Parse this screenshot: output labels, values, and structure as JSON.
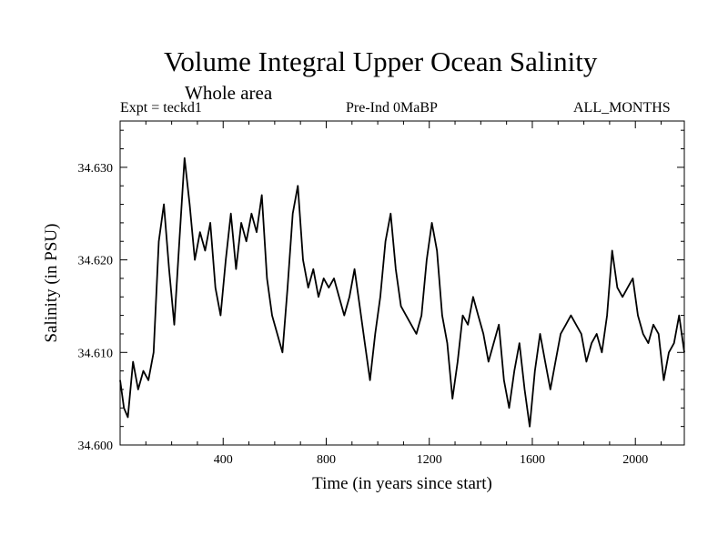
{
  "chart_data": {
    "type": "line",
    "title": "Volume Integral Upper Ocean Salinity",
    "subtitle": "Whole area",
    "annotations": {
      "left": "Expt = teckd1",
      "center": "Pre-Ind 0MaBP",
      "right": "ALL_MONTHS"
    },
    "xlabel": "Time (in years since start)",
    "ylabel": "Salinity (in PSU)",
    "xlim": [
      0,
      2190
    ],
    "ylim": [
      34.6,
      34.635
    ],
    "xticks": [
      400,
      800,
      1200,
      1600,
      2000
    ],
    "xtick_labels": [
      "400",
      "800",
      "1200",
      "1600",
      "2000"
    ],
    "yticks": [
      34.6,
      34.61,
      34.62,
      34.63
    ],
    "ytick_labels": [
      "34.600",
      "34.610",
      "34.620",
      "34.630"
    ],
    "grid": false,
    "series": [
      {
        "name": "Salinity",
        "color": "#000000",
        "x": [
          0,
          15,
          30,
          50,
          70,
          90,
          110,
          130,
          150,
          170,
          190,
          210,
          230,
          250,
          270,
          290,
          310,
          330,
          350,
          370,
          390,
          410,
          430,
          450,
          470,
          490,
          510,
          530,
          550,
          570,
          590,
          610,
          630,
          650,
          670,
          690,
          710,
          730,
          750,
          770,
          790,
          810,
          830,
          850,
          870,
          890,
          910,
          930,
          950,
          970,
          990,
          1010,
          1030,
          1050,
          1070,
          1090,
          1110,
          1130,
          1150,
          1170,
          1190,
          1210,
          1230,
          1250,
          1270,
          1290,
          1310,
          1330,
          1350,
          1370,
          1390,
          1410,
          1430,
          1450,
          1470,
          1490,
          1510,
          1530,
          1550,
          1570,
          1590,
          1610,
          1630,
          1650,
          1670,
          1690,
          1710,
          1730,
          1750,
          1770,
          1790,
          1810,
          1830,
          1850,
          1870,
          1890,
          1910,
          1930,
          1950,
          1970,
          1990,
          2010,
          2030,
          2050,
          2070,
          2090,
          2110,
          2130,
          2150,
          2170,
          2190
        ],
        "values": [
          34.607,
          34.604,
          34.603,
          34.609,
          34.606,
          34.608,
          34.607,
          34.61,
          34.622,
          34.626,
          34.619,
          34.613,
          34.622,
          34.631,
          34.626,
          34.62,
          34.623,
          34.621,
          34.624,
          34.617,
          34.614,
          34.62,
          34.625,
          34.619,
          34.624,
          34.622,
          34.625,
          34.623,
          34.627,
          34.618,
          34.614,
          34.612,
          34.61,
          34.617,
          34.625,
          34.628,
          34.62,
          34.617,
          34.619,
          34.616,
          34.618,
          34.617,
          34.618,
          34.616,
          34.614,
          34.616,
          34.619,
          34.615,
          34.611,
          34.607,
          34.612,
          34.616,
          34.622,
          34.625,
          34.619,
          34.615,
          34.614,
          34.613,
          34.612,
          34.614,
          34.62,
          34.624,
          34.621,
          34.614,
          34.611,
          34.605,
          34.609,
          34.614,
          34.613,
          34.616,
          34.614,
          34.612,
          34.609,
          34.611,
          34.613,
          34.607,
          34.604,
          34.608,
          34.611,
          34.606,
          34.602,
          34.608,
          34.612,
          34.609,
          34.606,
          34.609,
          34.612,
          34.613,
          34.614,
          34.613,
          34.612,
          34.609,
          34.611,
          34.612,
          34.61,
          34.614,
          34.621,
          34.617,
          34.616,
          34.617,
          34.618,
          34.614,
          34.612,
          34.611,
          34.613,
          34.612,
          34.607,
          34.61,
          34.611,
          34.614,
          34.61
        ]
      }
    ]
  }
}
